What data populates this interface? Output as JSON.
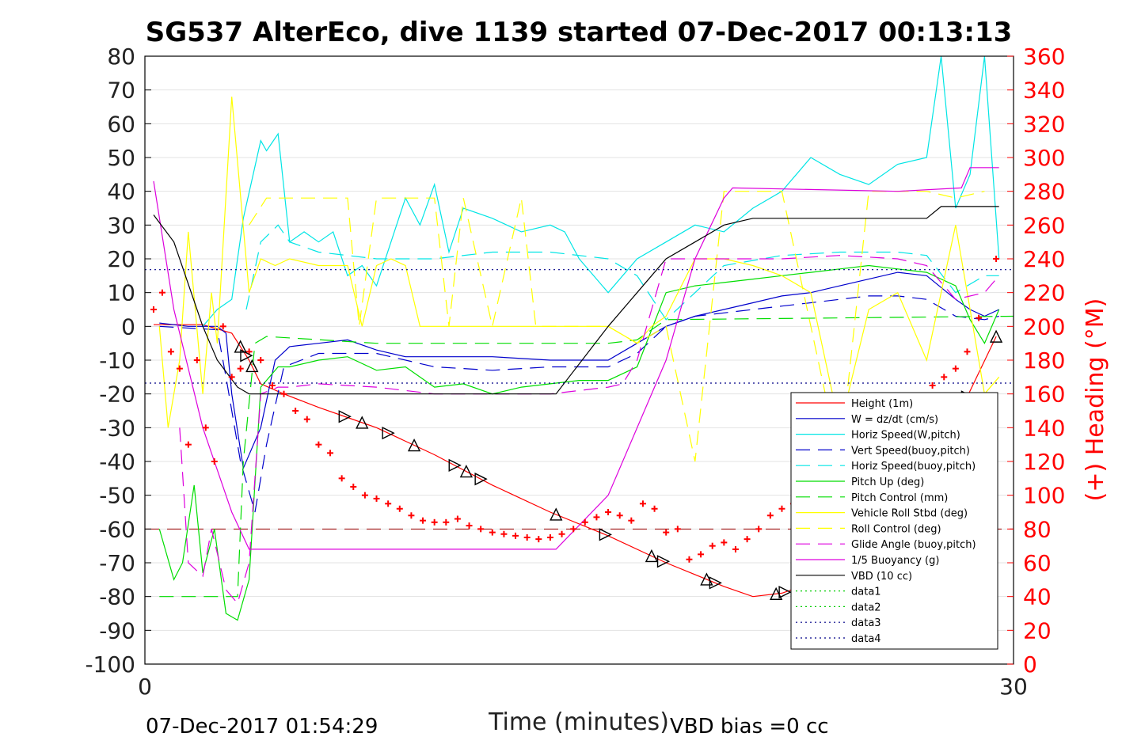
{
  "chart_data": {
    "type": "line",
    "title": "SG537 AlterEco, dive 1139 started 07-Dec-2017 00:13:13",
    "xlabel": "Time (minutes)",
    "ylabel": "",
    "y2label": "(+) Heading (°M)",
    "xlim": [
      0,
      30
    ],
    "ylim": [
      -100,
      80
    ],
    "y2lim": [
      0,
      360
    ],
    "x_ticks": [
      0,
      30
    ],
    "y_ticks": [
      80,
      70,
      60,
      50,
      40,
      30,
      20,
      10,
      0,
      -10,
      -20,
      -30,
      -40,
      -50,
      -60,
      -70,
      -80,
      -90,
      -100
    ],
    "y2_ticks": [
      360,
      340,
      320,
      300,
      280,
      260,
      240,
      220,
      200,
      180,
      160,
      140,
      120,
      100,
      80,
      60,
      40,
      20,
      0
    ],
    "grid": true,
    "legend_position": "bottom-right",
    "footer_left": "07-Dec-2017 01:54:29",
    "footer_right": "VBD bias =0 cc",
    "series": [
      {
        "name": "Height (1m)",
        "color": "#ff0000",
        "dash": "solid",
        "x": [
          0.3,
          2,
          3,
          3.6,
          4,
          4.8,
          6,
          7,
          8,
          10,
          12,
          14,
          16,
          18,
          20,
          21,
          22,
          23,
          24,
          25,
          26,
          27,
          28,
          29.4
        ],
        "y": [
          0.5,
          0.5,
          -2,
          -10,
          -17,
          -20,
          -24,
          -27,
          -30,
          -38,
          -47,
          -55,
          -62,
          -70,
          -77,
          -80,
          -79,
          -76,
          -72,
          -67,
          -55,
          -42,
          -28,
          -3
        ]
      },
      {
        "name": "W = dz/dt (cm/s)",
        "color": "#0000cc",
        "dash": "solid",
        "x": [
          0.5,
          1.5,
          2.5,
          2.8,
          3,
          3.4,
          4,
          4.5,
          5,
          6,
          7,
          8,
          9,
          10,
          12,
          14,
          16,
          17,
          18,
          19,
          20,
          21,
          22,
          23,
          24,
          25,
          26,
          27,
          28,
          28.5,
          29,
          29.5
        ],
        "y": [
          1,
          0,
          0,
          -2,
          -20,
          -42,
          -30,
          -10,
          -6,
          -5,
          -4,
          -7,
          -9,
          -9,
          -9,
          -10,
          -10,
          -5,
          0,
          3,
          5,
          7,
          9,
          10,
          12,
          14,
          16,
          15,
          8,
          5,
          3,
          5
        ]
      },
      {
        "name": "Horiz Speed(W,pitch)",
        "color": "#00e5e5",
        "dash": "solid",
        "x": [
          2,
          2.5,
          3,
          3.4,
          4,
          4.2,
          4.6,
          5,
          5.5,
          6,
          6.5,
          7,
          7.5,
          8,
          8.5,
          9,
          9.5,
          10,
          10.5,
          11,
          12,
          13,
          14,
          14.5,
          15,
          16,
          17,
          18,
          19,
          20,
          21,
          22,
          23,
          24,
          25,
          26,
          27,
          27.5,
          28,
          28.5,
          29,
          29.5
        ],
        "y": [
          0,
          5,
          8,
          32,
          55,
          52,
          57,
          25,
          28,
          25,
          28,
          15,
          18,
          12,
          25,
          38,
          30,
          42,
          22,
          35,
          32,
          28,
          30,
          28,
          20,
          10,
          20,
          25,
          30,
          28,
          35,
          40,
          50,
          45,
          42,
          48,
          50,
          80,
          35,
          45,
          80,
          20
        ]
      },
      {
        "name": "Vert Speed(buoy,pitch)",
        "color": "#0000cc",
        "dash": "long",
        "x": [
          0.5,
          2.5,
          2.8,
          3.3,
          3.8,
          4.2,
          4.8,
          6,
          8,
          10,
          12,
          14,
          16,
          17,
          18,
          19,
          20,
          21,
          22,
          23,
          24,
          25,
          26,
          27,
          28,
          29,
          29.5
        ],
        "y": [
          0,
          -1,
          -15,
          -40,
          -55,
          -35,
          -12,
          -8,
          -8,
          -12,
          -13,
          -12,
          -12,
          -8,
          0,
          3,
          4,
          5,
          6,
          7,
          8,
          9,
          9,
          8,
          3,
          2,
          3
        ]
      },
      {
        "name": "Horiz Speed(buoy,pitch)",
        "color": "#00e5e5",
        "dash": "long",
        "x": [
          3.5,
          4,
          4.6,
          5,
          6,
          8,
          10,
          12,
          14,
          16,
          17,
          18,
          19,
          20,
          22,
          24,
          26,
          27,
          28,
          29,
          29.5
        ],
        "y": [
          5,
          25,
          30,
          25,
          22,
          20,
          20,
          22,
          22,
          20,
          15,
          2,
          10,
          18,
          21,
          22,
          22,
          21,
          10,
          15,
          15
        ]
      },
      {
        "name": "Pitch Up (deg)",
        "color": "#00dd00",
        "dash": "solid",
        "x": [
          0.5,
          1,
          1.3,
          1.7,
          2,
          2.4,
          2.8,
          3.2,
          3.6,
          4,
          4.6,
          5,
          6,
          7,
          8,
          9,
          10,
          11,
          12,
          13,
          14,
          15,
          16,
          17,
          18,
          19,
          20,
          21,
          22,
          23,
          24,
          25,
          26,
          27,
          28,
          28.5,
          29,
          29.5
        ],
        "y": [
          -60,
          -75,
          -70,
          -47,
          -73,
          -60,
          -85,
          -87,
          -75,
          -18,
          -12,
          -12,
          -10,
          -9,
          -13,
          -12,
          -18,
          -17,
          -20,
          -18,
          -17,
          -16,
          -16,
          -12,
          10,
          12,
          13,
          14,
          15,
          16,
          17,
          18,
          17,
          16,
          12,
          2,
          -5,
          5
        ]
      },
      {
        "name": "Pitch Control (mm)",
        "color": "#00dd00",
        "dash": "long",
        "x": [
          0.5,
          3.2,
          3.4,
          3.8,
          4.2,
          8,
          12,
          16,
          17,
          18,
          30
        ],
        "y": [
          -80,
          -80,
          -40,
          -5,
          -3,
          -5,
          -5,
          -5,
          -4,
          2,
          3
        ]
      },
      {
        "name": "Vehicle Roll Stbd (deg)",
        "color": "#ffff00",
        "dash": "solid",
        "x": [
          0.5,
          0.8,
          1.2,
          1.5,
          2,
          2.3,
          2.5,
          3,
          3.6,
          4,
          4.5,
          5,
          6,
          7,
          7.5,
          8,
          8.5,
          9,
          9.5,
          10,
          11,
          12,
          13,
          14,
          15,
          16,
          17,
          17.5,
          18,
          19,
          20,
          21,
          22,
          23,
          24,
          25,
          26,
          27,
          28,
          29,
          29.5
        ],
        "y": [
          0,
          -30,
          -10,
          28,
          -20,
          10,
          -5,
          68,
          10,
          20,
          18,
          20,
          18,
          18,
          0,
          18,
          20,
          18,
          0,
          0,
          0,
          0,
          0,
          0,
          0,
          0,
          -5,
          0,
          3,
          20,
          20,
          18,
          15,
          10,
          -30,
          5,
          10,
          -10,
          30,
          -20,
          -15
        ]
      },
      {
        "name": "Roll Control (deg)",
        "color": "#ffff00",
        "dash": "long",
        "x": [
          3.6,
          4.2,
          6,
          7,
          7.4,
          8,
          9,
          10,
          10.5,
          11,
          12,
          13,
          13.5,
          14,
          16,
          17,
          18,
          19,
          20,
          21,
          22,
          23,
          24,
          25,
          26,
          27,
          28,
          29
        ],
        "y": [
          30,
          38,
          38,
          38,
          0,
          38,
          38,
          38,
          0,
          38,
          0,
          38,
          0,
          0,
          0,
          -5,
          0,
          -40,
          40,
          40,
          40,
          0,
          -40,
          40,
          40,
          40,
          38,
          40
        ]
      },
      {
        "name": "Glide Angle (buoy,pitch)",
        "color": "#dd00dd",
        "dash": "long",
        "x": [
          1.2,
          1.5,
          2,
          2.3,
          2.8,
          3.2,
          3.6,
          4,
          4.6,
          5,
          6,
          8,
          10,
          12,
          14,
          16,
          16.5,
          17,
          17.5,
          18,
          19,
          20,
          22,
          24,
          26,
          27,
          28,
          29,
          29.5
        ],
        "y": [
          -30,
          -70,
          -74,
          -60,
          -78,
          -82,
          -70,
          -20,
          -18,
          -18,
          -17,
          -18,
          -20,
          -20,
          -20,
          -18,
          -17,
          -10,
          5,
          20,
          20,
          20,
          20,
          21,
          20,
          18,
          8,
          10,
          15
        ]
      },
      {
        "name": "1/5 Buoyancy (g)",
        "color": "#dd00dd",
        "dash": "solid",
        "x": [
          0.3,
          1,
          2,
          3,
          3.6,
          14.2,
          16,
          18,
          19,
          20,
          20.3,
          26,
          28.2,
          28.5,
          29.5
        ],
        "y": [
          43,
          5,
          -30,
          -55,
          -66,
          -66,
          -50,
          -10,
          20,
          38,
          41,
          40,
          41,
          47,
          47
        ]
      },
      {
        "name": "VBD (10 cc)",
        "color": "#000000",
        "dash": "solid",
        "x": [
          0.3,
          1,
          2,
          2.5,
          3.2,
          3.6,
          8,
          12,
          14.2,
          16,
          17,
          18,
          19,
          20,
          21,
          22,
          25,
          27,
          27.5,
          29.5
        ],
        "y": [
          33,
          25,
          0,
          -10,
          -18,
          -20,
          -20,
          -20,
          -20,
          0,
          10,
          20,
          25,
          30,
          32,
          32,
          32,
          32,
          35.5,
          35.5
        ]
      },
      {
        "name": "data1",
        "color": "#00cc00",
        "dash": "dot",
        "x": [],
        "y": []
      },
      {
        "name": "data2",
        "color": "#00cc00",
        "dash": "dot",
        "x": [],
        "y": []
      },
      {
        "name": "data3",
        "color": "#000088",
        "dash": "dot",
        "x": [
          0,
          30
        ],
        "y": [
          16.8,
          16.8
        ]
      },
      {
        "name": "data4",
        "color": "#000088",
        "dash": "dot",
        "x": [
          0,
          30
        ],
        "y": [
          -16.8,
          -16.8
        ]
      }
    ],
    "reference_lines": [
      {
        "color": "#990000",
        "dash": "long",
        "y": -60
      }
    ],
    "heading_points": {
      "color": "#ff0000",
      "marker": "plus",
      "axis": "right",
      "x": [
        0.3,
        0.6,
        0.9,
        1.2,
        1.5,
        1.8,
        2.1,
        2.4,
        2.7,
        3.0,
        3.3,
        3.6,
        4.0,
        4.4,
        4.8,
        5.2,
        5.6,
        6.0,
        6.4,
        6.8,
        7.2,
        7.6,
        8.0,
        8.4,
        8.8,
        9.2,
        9.6,
        10.0,
        10.4,
        10.8,
        11.2,
        11.6,
        12.0,
        12.4,
        12.8,
        13.2,
        13.6,
        14.0,
        14.4,
        14.8,
        15.2,
        15.6,
        16.0,
        16.4,
        16.8,
        17.2,
        17.6,
        18.0,
        18.4,
        18.8,
        19.2,
        19.6,
        20.0,
        20.4,
        20.8,
        21.2,
        21.6,
        22.0,
        22.4,
        22.8,
        23.2,
        23.6,
        24.0,
        24.4,
        24.8,
        25.2,
        25.6,
        26.0,
        26.4,
        26.8,
        27.2,
        27.6,
        28.0,
        28.4,
        28.8,
        29.4
      ],
      "y": [
        210,
        220,
        185,
        175,
        130,
        180,
        140,
        120,
        200,
        170,
        175,
        185,
        180,
        165,
        160,
        150,
        145,
        130,
        125,
        110,
        105,
        100,
        98,
        95,
        92,
        88,
        85,
        84,
        84,
        86,
        82,
        80,
        78,
        77,
        76,
        75,
        74,
        75,
        77,
        80,
        84,
        87,
        90,
        88,
        85,
        95,
        92,
        78,
        80,
        62,
        65,
        70,
        72,
        68,
        74,
        80,
        88,
        92,
        95,
        100,
        105,
        75,
        65,
        62,
        68,
        75,
        90,
        110,
        130,
        150,
        165,
        170,
        175,
        185,
        205,
        240
      ]
    },
    "triangle_markers": {
      "color": "#000000",
      "marker": "triangle",
      "on_series": "Height (1m)",
      "x": [
        3.3,
        3.5,
        3.7,
        6.9,
        7.5,
        8.4,
        9.3,
        10.7,
        11.1,
        11.6,
        14.2,
        15.9,
        17.5,
        17.9,
        19.4,
        19.7,
        21.8,
        22.1,
        23.6,
        24.1,
        26.0,
        26.3,
        26.5,
        26.9,
        27.3,
        27.7,
        28.0,
        28.4,
        29.4
      ]
    }
  }
}
